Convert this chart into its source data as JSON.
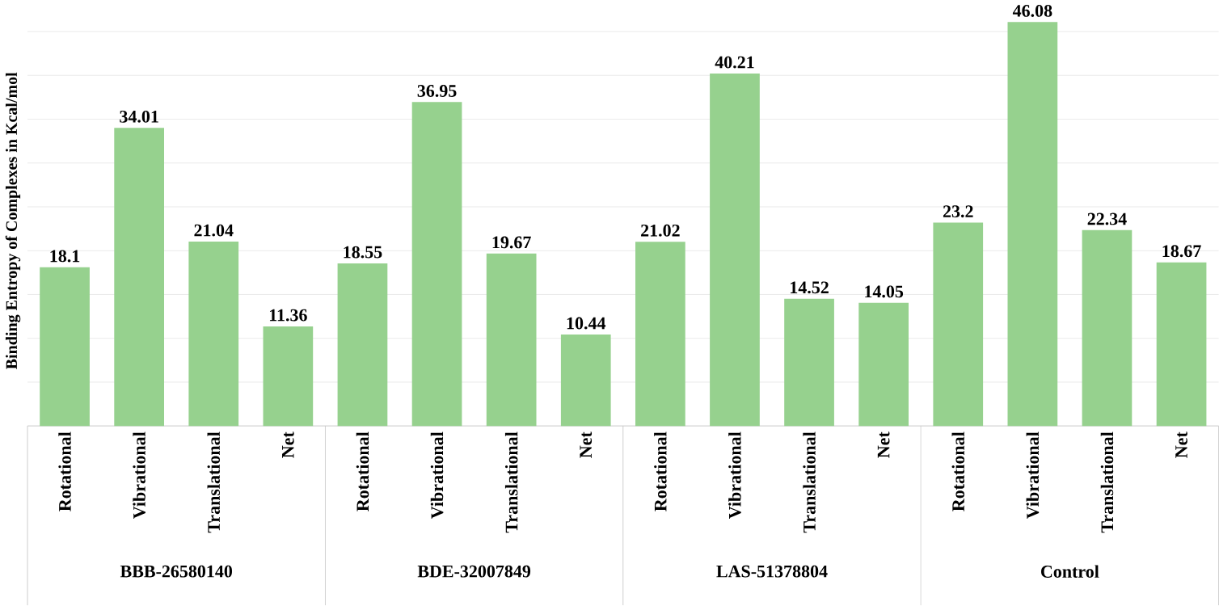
{
  "chart_data": {
    "type": "bar",
    "ylabel": "Binding Entropy of Complexes in Kcal/mol",
    "categories": [
      "Rotational",
      "Vibrational",
      "Translational",
      "Net",
      "Rotational",
      "Vibrational",
      "Translational",
      "Net",
      "Rotational",
      "Vibrational",
      "Translational",
      "Net",
      "Rotational",
      "Vibrational",
      "Translational",
      "Net"
    ],
    "values": [
      18.1,
      34.01,
      21.04,
      11.36,
      18.55,
      36.95,
      19.67,
      10.44,
      21.02,
      40.21,
      14.52,
      14.05,
      23.2,
      46.08,
      22.34,
      18.67
    ],
    "color": "#96d18e",
    "tick_labels": "x",
    "grid": "y",
    "data_labels": true,
    "annotations": [
      "BBB-26580140",
      "BDE-32007849",
      "LAS-51378804",
      "Control"
    ]
  }
}
